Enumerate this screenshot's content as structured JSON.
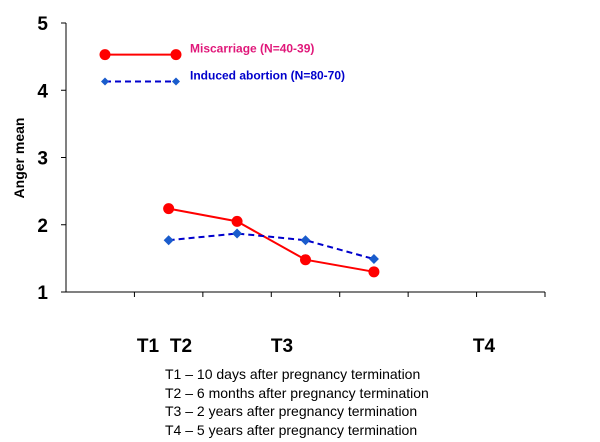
{
  "chart_data": {
    "type": "line",
    "ylabel": "Anger mean",
    "ylim": [
      1,
      5
    ],
    "yticks": [
      1,
      2,
      3,
      4,
      5
    ],
    "grid": false,
    "categories": [
      "T1",
      "T2",
      "T3",
      "T4"
    ],
    "series": [
      {
        "name": "Miscarriage (N=40-39)",
        "color": "#ff0000",
        "line_style": "solid",
        "marker": "circle",
        "x": [
          2,
          3,
          4,
          5
        ],
        "values": [
          2.24,
          2.05,
          1.48,
          1.3
        ]
      },
      {
        "name": "Induced abortion (N=80-70)",
        "color": "#0000cc",
        "marker_color": "#1a5ccc",
        "line_style": "dashed",
        "marker": "diamond",
        "x": [
          2,
          3,
          4,
          5
        ],
        "values": [
          1.77,
          1.87,
          1.77,
          1.49
        ]
      }
    ],
    "legend": [
      {
        "label": "Miscarriage (N=40-39)",
        "color": "#e0187a",
        "y": 4.53
      },
      {
        "label": "Induced abortion (N=80-70)",
        "color": "#0000cc",
        "y": 4.13
      }
    ]
  },
  "notes": [
    "T1 – 10 days after pregnancy termination",
    "T2 – 6 months after pregnancy termination",
    "T3 – 2 years after pregnancy termination",
    "T4 – 5 years after pregnancy termination"
  ]
}
